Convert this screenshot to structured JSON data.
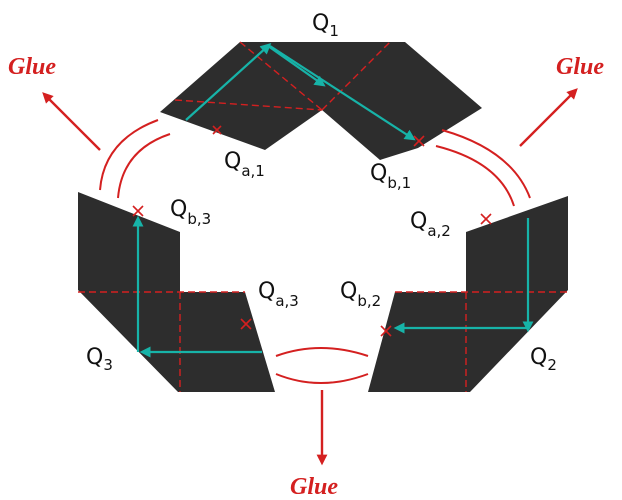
{
  "colors": {
    "piece_fill": "#2d2d2d",
    "path": "#17b3a8",
    "glue": "#d42020",
    "dash": "#d42020",
    "label": "#111111"
  },
  "glue": {
    "top_left": "Glue",
    "top_right": "Glue",
    "bottom": "Glue"
  },
  "pieces": {
    "q1": {
      "main": "Q",
      "sub": "1"
    },
    "q2": {
      "main": "Q",
      "sub": "2"
    },
    "q3": {
      "main": "Q",
      "sub": "3"
    }
  },
  "markers": {
    "qa1": {
      "main": "Q",
      "sub": "a,1"
    },
    "qb1": {
      "main": "Q",
      "sub": "b,1"
    },
    "qa2": {
      "main": "Q",
      "sub": "a,2"
    },
    "qb2": {
      "main": "Q",
      "sub": "b,2"
    },
    "qa3": {
      "main": "Q",
      "sub": "a,3"
    },
    "qb3": {
      "main": "Q",
      "sub": "b,3"
    }
  }
}
